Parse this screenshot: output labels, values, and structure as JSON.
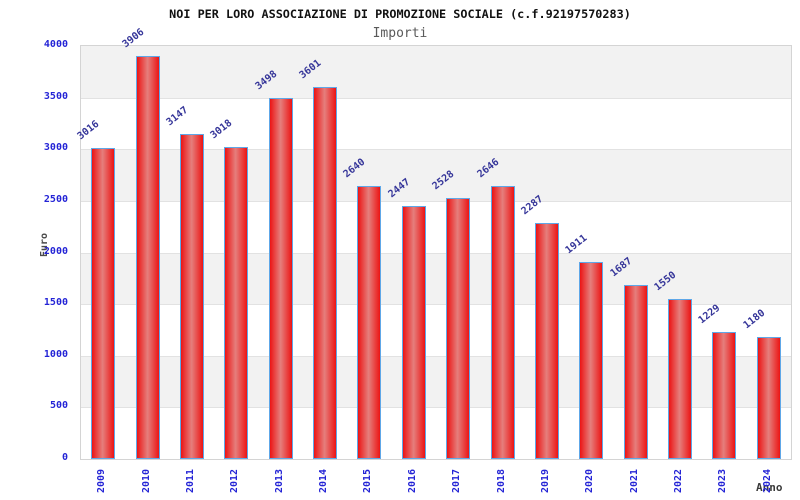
{
  "chart_data": {
    "type": "bar",
    "title": "NOI PER LORO ASSOCIAZIONE DI PROMOZIONE SOCIALE (c.f.92197570283)",
    "subtitle": "Importi",
    "xlabel": "Anno",
    "ylabel": "Euro",
    "categories": [
      "2009",
      "2010",
      "2011",
      "2012",
      "2013",
      "2014",
      "2015",
      "2016",
      "2017",
      "2018",
      "2019",
      "2020",
      "2021",
      "2022",
      "2023",
      "2024"
    ],
    "values": [
      3016,
      3906,
      3147,
      3018,
      3498,
      3601,
      2640,
      2447,
      2528,
      2646,
      2287,
      1911,
      1687,
      1550,
      1229,
      1180
    ],
    "ylim": [
      0,
      4000
    ],
    "yticks": [
      0,
      500,
      1000,
      1500,
      2000,
      2500,
      3000,
      3500,
      4000
    ],
    "legend": "none",
    "grid": "alternating-horizontal-bands",
    "colors": {
      "bar_fill": "#ec1414",
      "bar_fill_center": "#e57f7d",
      "bar_border": "#5ea7e8",
      "tick_label": "#2424d6",
      "value_label": "#353599",
      "band_gray": "#f2f2f2",
      "band_white": "#ffffff",
      "grid_line": "#e2e2e2",
      "title": "#111111",
      "subtitle": "#5a5a5a"
    }
  }
}
